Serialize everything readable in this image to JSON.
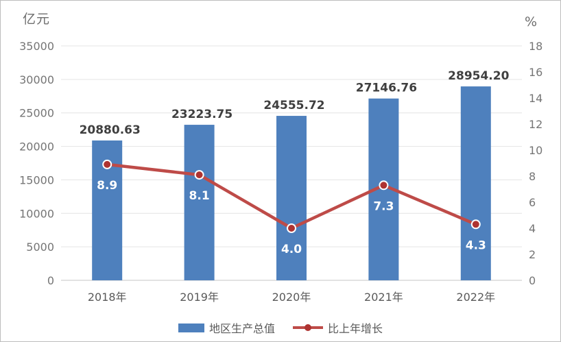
{
  "chart_data": {
    "type": "combo-bar-line",
    "title": "",
    "categories": [
      "2018年",
      "2019年",
      "2020年",
      "2021年",
      "2022年"
    ],
    "series": [
      {
        "name": "地区生产总值",
        "type": "bar",
        "axis": "left",
        "values": [
          20880.63,
          23223.75,
          24555.72,
          27146.76,
          28954.2
        ],
        "labels": [
          "20880.63",
          "23223.75",
          "24555.72",
          "27146.76",
          "28954.20"
        ],
        "color": "#4e80bd"
      },
      {
        "name": "比上年增长",
        "type": "line",
        "axis": "right",
        "values": [
          8.9,
          8.1,
          4.0,
          7.3,
          4.3
        ],
        "labels": [
          "8.9",
          "8.1",
          "4.0",
          "7.3",
          "4.3"
        ],
        "color": "#be4b48",
        "marker_color": "#ae3331"
      }
    ],
    "left_axis": {
      "title": "亿元",
      "min": 0,
      "max": 35000,
      "step": 5000,
      "ticks": [
        "0",
        "5000",
        "10000",
        "15000",
        "20000",
        "25000",
        "30000",
        "35000"
      ]
    },
    "right_axis": {
      "title": "%",
      "min": 0,
      "max": 18,
      "step": 2,
      "ticks": [
        "0",
        "2",
        "4",
        "6",
        "8",
        "10",
        "12",
        "14",
        "16",
        "18"
      ]
    },
    "grid": true,
    "legend_position": "bottom"
  },
  "colors": {
    "bar": "#4e80bd",
    "line": "#be4b48",
    "marker": "#ae3331",
    "grid": "#e4e4e4",
    "axis_line": "#c6c6c6",
    "tick_text": "#757575",
    "bar_label": "#3f3f3f",
    "line_label": "#ffffff",
    "x_label": "#595959"
  }
}
